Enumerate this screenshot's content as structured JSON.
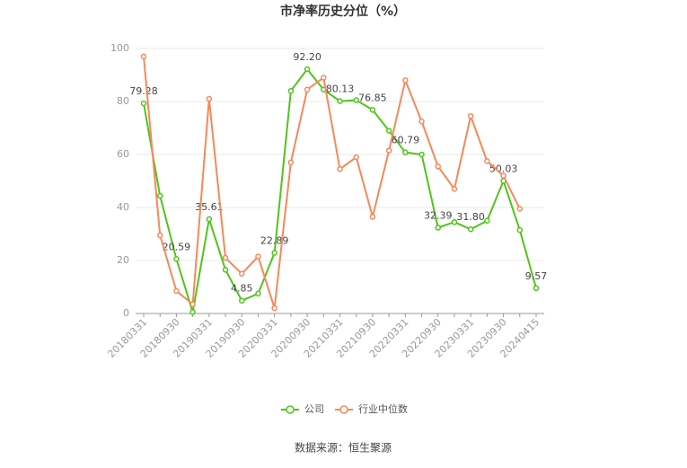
{
  "chart_data": {
    "type": "line",
    "title": "市净率历史分位（%）",
    "source": "数据来源：恒生聚源",
    "categories": [
      "20180331",
      null,
      "20180930",
      null,
      "20190331",
      null,
      "20190930",
      null,
      "20200331",
      null,
      "20200930",
      null,
      "20210331",
      null,
      "20210930",
      null,
      "20220331",
      null,
      "20220930",
      null,
      "20230331",
      null,
      "20230930",
      null,
      "20240415"
    ],
    "series": [
      {
        "name": "公司",
        "color": "#52c41a",
        "values": [
          79.28,
          44.4,
          20.59,
          0.5,
          35.61,
          16.5,
          4.85,
          7.5,
          22.89,
          84,
          92.2,
          84.5,
          80.13,
          80.5,
          76.85,
          69,
          60.79,
          60,
          32.39,
          34.5,
          31.8,
          35,
          50.03,
          31.5,
          9.57
        ],
        "value_labels": [
          "79.28",
          null,
          "20.59",
          null,
          "35.61",
          null,
          "4.85",
          null,
          "22.89",
          null,
          "92.20",
          null,
          "80.13",
          null,
          "76.85",
          null,
          "60.79",
          null,
          "32.39",
          null,
          "31.80",
          null,
          "50.03",
          null,
          "9.57"
        ]
      },
      {
        "name": "行业中位数",
        "color": "#f5895a",
        "values": [
          97,
          29.5,
          8.5,
          3.5,
          81,
          21,
          15,
          21.5,
          2,
          57,
          84.5,
          89,
          54.5,
          59,
          36.5,
          61.5,
          88,
          72.5,
          55.5,
          47,
          74.5,
          57.5,
          52,
          39.5,
          null
        ]
      }
    ],
    "ylim": [
      0,
      100
    ],
    "yticks": [
      0,
      20,
      40,
      60,
      80,
      100
    ],
    "grid": true
  }
}
